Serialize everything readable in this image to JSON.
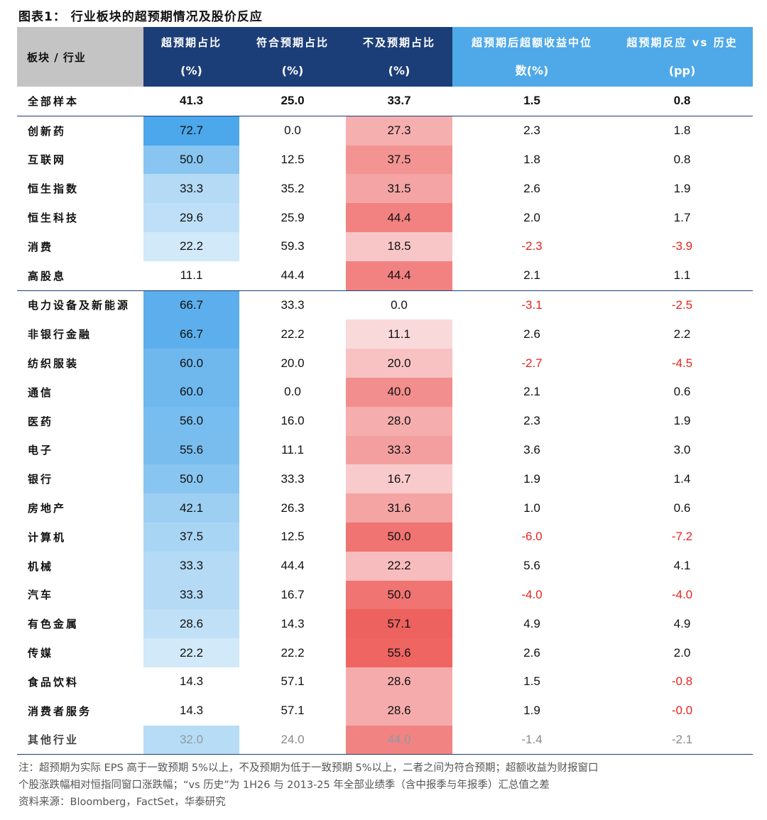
{
  "figure_title": "图表1：  行业板块的超预期情况及股价反应",
  "headers": {
    "sector": "板块 / 行业",
    "beat_l1": "超预期占比",
    "beat_l2": "(%)",
    "inline_l1": "符合预期占比",
    "inline_l2": "(%)",
    "miss_l1": "不及预期占比",
    "miss_l2": "(%)",
    "excess_l1": "超预期后超额收益中位",
    "excess_l2": "数(%)",
    "vshist_l1": "超预期反应 vs 历史",
    "vshist_l2": "(pp)"
  },
  "colors": {
    "header_dark": "#1c3e78",
    "header_light": "#4fa9e8",
    "header_corner": "#c4c4c4",
    "negative_text": "#e8231e",
    "blue_scale": "#4aa6ea",
    "red_scale": "#ed5f5c"
  },
  "total_row": {
    "name": "全部样本",
    "beat": "41.3",
    "inline": "25.0",
    "miss": "33.7",
    "excess": "1.5",
    "vs_hist": "0.8"
  },
  "group1": [
    {
      "name": "创新药",
      "beat": "72.7",
      "inline": "0.0",
      "miss": "27.3",
      "excess": "2.3",
      "vs_hist": "1.8"
    },
    {
      "name": "互联网",
      "beat": "50.0",
      "inline": "12.5",
      "miss": "37.5",
      "excess": "1.8",
      "vs_hist": "0.8"
    },
    {
      "name": "恒生指数",
      "beat": "33.3",
      "inline": "35.2",
      "miss": "31.5",
      "excess": "2.6",
      "vs_hist": "1.9"
    },
    {
      "name": "恒生科技",
      "beat": "29.6",
      "inline": "25.9",
      "miss": "44.4",
      "excess": "2.0",
      "vs_hist": "1.7"
    },
    {
      "name": "消费",
      "beat": "22.2",
      "inline": "59.3",
      "miss": "18.5",
      "excess": "-2.3",
      "vs_hist": "-3.9"
    },
    {
      "name": "高股息",
      "beat": "11.1",
      "inline": "44.4",
      "miss": "44.4",
      "excess": "2.1",
      "vs_hist": "1.1"
    }
  ],
  "group2": [
    {
      "name": "电力设备及新能源",
      "beat": "66.7",
      "inline": "33.3",
      "miss": "0.0",
      "excess": "-3.1",
      "vs_hist": "-2.5"
    },
    {
      "name": "非银行金融",
      "beat": "66.7",
      "inline": "22.2",
      "miss": "11.1",
      "excess": "2.6",
      "vs_hist": "2.2"
    },
    {
      "name": "纺织服装",
      "beat": "60.0",
      "inline": "20.0",
      "miss": "20.0",
      "excess": "-2.7",
      "vs_hist": "-4.5"
    },
    {
      "name": "通信",
      "beat": "60.0",
      "inline": "0.0",
      "miss": "40.0",
      "excess": "2.1",
      "vs_hist": "0.6"
    },
    {
      "name": "医药",
      "beat": "56.0",
      "inline": "16.0",
      "miss": "28.0",
      "excess": "2.3",
      "vs_hist": "1.9"
    },
    {
      "name": "电子",
      "beat": "55.6",
      "inline": "11.1",
      "miss": "33.3",
      "excess": "3.6",
      "vs_hist": "3.0"
    },
    {
      "name": "银行",
      "beat": "50.0",
      "inline": "33.3",
      "miss": "16.7",
      "excess": "1.9",
      "vs_hist": "1.4"
    },
    {
      "name": "房地产",
      "beat": "42.1",
      "inline": "26.3",
      "miss": "31.6",
      "excess": "1.0",
      "vs_hist": "0.6"
    },
    {
      "name": "计算机",
      "beat": "37.5",
      "inline": "12.5",
      "miss": "50.0",
      "excess": "-6.0",
      "vs_hist": "-7.2"
    },
    {
      "name": "机械",
      "beat": "33.3",
      "inline": "44.4",
      "miss": "22.2",
      "excess": "5.6",
      "vs_hist": "4.1"
    },
    {
      "name": "汽车",
      "beat": "33.3",
      "inline": "16.7",
      "miss": "50.0",
      "excess": "-4.0",
      "vs_hist": "-4.0"
    },
    {
      "name": "有色金属",
      "beat": "28.6",
      "inline": "14.3",
      "miss": "57.1",
      "excess": "4.9",
      "vs_hist": "4.9"
    },
    {
      "name": "传媒",
      "beat": "22.2",
      "inline": "22.2",
      "miss": "55.6",
      "excess": "2.6",
      "vs_hist": "2.0"
    },
    {
      "name": "食品饮料",
      "beat": "14.3",
      "inline": "57.1",
      "miss": "28.6",
      "excess": "1.5",
      "vs_hist": "-0.8"
    },
    {
      "name": "消费者服务",
      "beat": "14.3",
      "inline": "57.1",
      "miss": "28.6",
      "excess": "1.9",
      "vs_hist": "-0.0"
    },
    {
      "name": "其他行业",
      "beat": "32.0",
      "inline": "24.0",
      "miss": "44.0",
      "excess": "-1.4",
      "vs_hist": "-2.1"
    }
  ],
  "notes": {
    "line1": "注：超预期为实际 EPS 高于一致预期 5%以上，不及预期为低于一致预期 5%以上，二者之间为符合预期；超额收益为财报窗口",
    "line2": "个股涨跌幅相对恒指同窗口涨跌幅；“vs 历史”为 1H26 与 2013-25 年全部业绩季（含中报季与年报季）汇总值之差",
    "source": "资料来源：Bloomberg，FactSet，华泰研究"
  }
}
